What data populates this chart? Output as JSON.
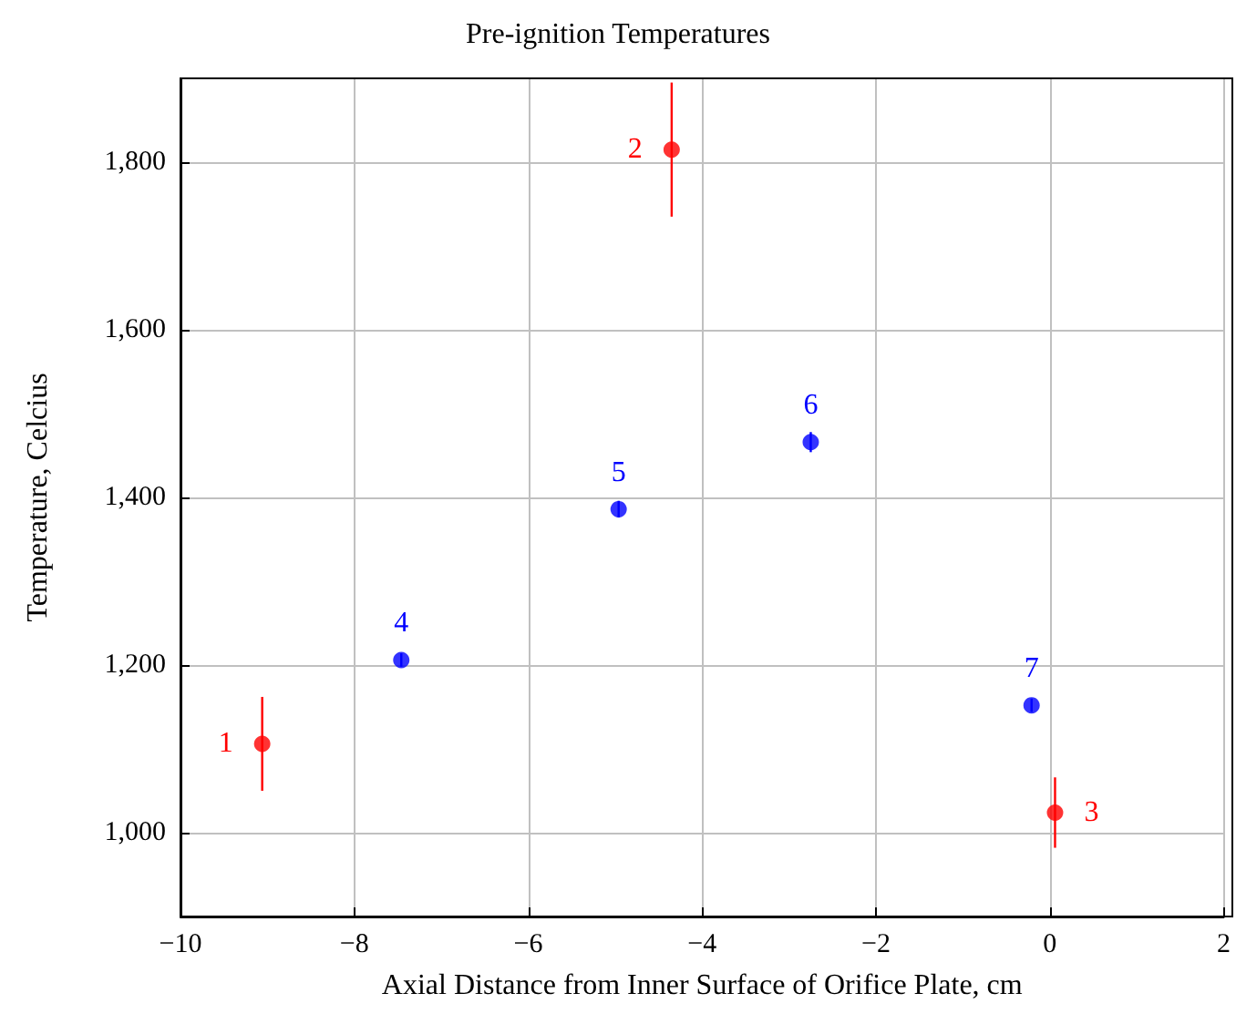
{
  "chart_data": {
    "type": "scatter",
    "title": "Pre-ignition Temperatures",
    "xlabel": "Axial Distance from Inner Surface of Orifice Plate, cm",
    "ylabel": "Temperature, Celcius",
    "series": [
      {
        "color": "#ff0000",
        "x": [
          -9.06,
          -4.35,
          0.06
        ],
        "values": [
          1106,
          1815,
          1024
        ],
        "errors": [
          56,
          80,
          42
        ]
      },
      {
        "color": "#0000ff",
        "x": [
          -7.46,
          -4.96,
          -2.75,
          -0.21
        ],
        "values": [
          1206,
          1386,
          1466,
          1152
        ],
        "errors": [
          8,
          10,
          12,
          8
        ]
      }
    ],
    "annotations": [
      {
        "text": "1",
        "x": -9.06,
        "y": 1106
      },
      {
        "text": "2",
        "x": -4.35,
        "y": 1815
      },
      {
        "text": "3",
        "x": 0.06,
        "y": 1024
      },
      {
        "text": "4",
        "x": -7.46,
        "y": 1206
      },
      {
        "text": "5",
        "x": -4.96,
        "y": 1386
      },
      {
        "text": "6",
        "x": -2.75,
        "y": 1466
      },
      {
        "text": "7",
        "x": -0.21,
        "y": 1152
      }
    ],
    "xlim": [
      -10,
      2
    ],
    "ylim": [
      900,
      1900
    ],
    "xticks": [
      {
        "value": -10,
        "label": "−10"
      },
      {
        "value": -8,
        "label": "−8"
      },
      {
        "value": -6,
        "label": "−6"
      },
      {
        "value": -4,
        "label": "−4"
      },
      {
        "value": -2,
        "label": "−2"
      },
      0,
      2
    ],
    "yticks": [
      {
        "value": 1000,
        "label": "1,000"
      },
      {
        "value": 1200,
        "label": "1,200"
      },
      {
        "value": 1400,
        "label": "1,400"
      },
      {
        "value": 1600,
        "label": "1,600"
      },
      {
        "value": 1800,
        "label": "1,800"
      }
    ],
    "grid": true,
    "marker": "circle"
  }
}
